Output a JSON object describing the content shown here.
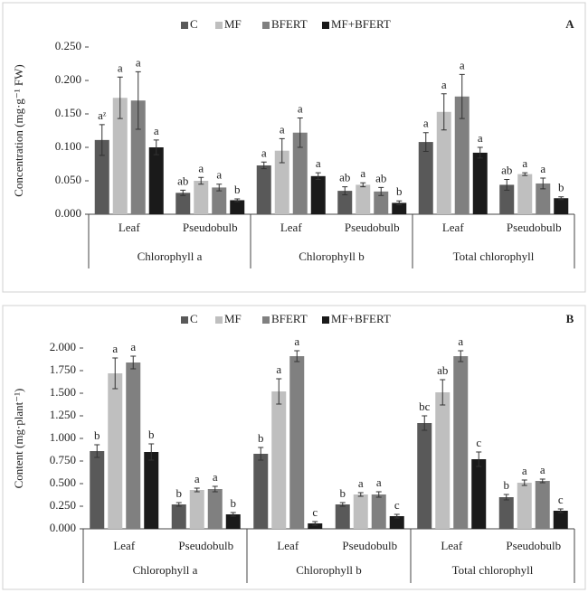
{
  "chart_data": [
    {
      "type": "bar",
      "panel_label": "A",
      "y_label": "Concentration  (mg·g⁻¹ FW)",
      "categories": [
        "Leaf",
        "Pseudobulb",
        "Leaf",
        "Pseudobulb",
        "Leaf",
        "Pseudobulb"
      ],
      "groups": [
        "Chlorophyll a",
        "Chlorophyll b",
        "Total chlorophyll"
      ],
      "ylim": [
        0,
        0.25
      ],
      "yticks": [
        {
          "value": 0,
          "label": "0.000"
        },
        {
          "value": 0.05,
          "label": "0.050"
        },
        {
          "value": 0.1,
          "label": "0.100"
        },
        {
          "value": 0.15,
          "label": "0.150"
        },
        {
          "value": 0.2,
          "label": "0.200"
        },
        {
          "value": 0.25,
          "label": "0.250"
        }
      ],
      "series": [
        {
          "name": "C",
          "color": "#595959",
          "values": [
            0.111,
            0.032,
            0.073,
            0.035,
            0.108,
            0.044
          ],
          "errors": [
            0.023,
            0.004,
            0.005,
            0.006,
            0.014,
            0.008
          ],
          "letters": [
            "aᶻ",
            "ab",
            "a",
            "ab",
            "a",
            "ab"
          ]
        },
        {
          "name": "MF",
          "color": "#bfbfbf",
          "values": [
            0.174,
            0.05,
            0.095,
            0.044,
            0.153,
            0.06
          ],
          "errors": [
            0.031,
            0.005,
            0.018,
            0.003,
            0.027,
            0.002
          ],
          "letters": [
            "a",
            "a",
            "a",
            "a",
            "a",
            "a"
          ]
        },
        {
          "name": "BFERT",
          "color": "#808080",
          "values": [
            0.17,
            0.04,
            0.122,
            0.034,
            0.176,
            0.046
          ],
          "errors": [
            0.043,
            0.005,
            0.022,
            0.006,
            0.033,
            0.008
          ],
          "letters": [
            "a",
            "a",
            "a",
            "ab",
            "a",
            "a"
          ]
        },
        {
          "name": "MF+BFERT",
          "color": "#1a1a1a",
          "values": [
            0.1,
            0.021,
            0.057,
            0.017,
            0.092,
            0.024
          ],
          "errors": [
            0.011,
            0.002,
            0.005,
            0.003,
            0.008,
            0.002
          ],
          "letters": [
            "a",
            "b",
            "a",
            "b",
            "a",
            "b"
          ]
        }
      ]
    },
    {
      "type": "bar",
      "panel_label": "B",
      "y_label": "Content  (mg·plant⁻¹)",
      "categories": [
        "Leaf",
        "Pseudobulb",
        "Leaf",
        "Pseudobulb",
        "Leaf",
        "Pseudobulb"
      ],
      "groups": [
        "Chlorophyll a",
        "Chlorophyll b",
        "Total chlorophyll"
      ],
      "ylim": [
        0,
        2
      ],
      "yticks": [
        {
          "value": 0,
          "label": "0.000"
        },
        {
          "value": 0.25,
          "label": "0.250"
        },
        {
          "value": 0.5,
          "label": "0.500"
        },
        {
          "value": 0.75,
          "label": "0.750"
        },
        {
          "value": 1,
          "label": "1.000"
        },
        {
          "value": 1.25,
          "label": "1.250"
        },
        {
          "value": 1.5,
          "label": "1.500"
        },
        {
          "value": 1.75,
          "label": "1.750"
        },
        {
          "value": 2,
          "label": "2.000"
        }
      ],
      "series": [
        {
          "name": "C",
          "color": "#595959",
          "values": [
            0.86,
            0.27,
            0.83,
            0.27,
            1.17,
            0.35
          ],
          "errors": [
            0.07,
            0.02,
            0.07,
            0.02,
            0.08,
            0.03
          ],
          "letters": [
            "b",
            "b",
            "b",
            "b",
            "bc",
            "b"
          ]
        },
        {
          "name": "MF",
          "color": "#bfbfbf",
          "values": [
            1.72,
            0.43,
            1.52,
            0.38,
            1.51,
            0.51
          ],
          "errors": [
            0.17,
            0.02,
            0.14,
            0.02,
            0.14,
            0.03
          ],
          "letters": [
            "a",
            "a",
            "a",
            "a",
            "ab",
            "a"
          ]
        },
        {
          "name": "BFERT",
          "color": "#808080",
          "values": [
            1.84,
            0.44,
            1.91,
            0.38,
            1.91,
            0.53
          ],
          "errors": [
            0.07,
            0.03,
            0.06,
            0.03,
            0.06,
            0.02
          ],
          "letters": [
            "a",
            "a",
            "a",
            "a",
            "a",
            "a"
          ]
        },
        {
          "name": "MF+BFERT",
          "color": "#1a1a1a",
          "values": [
            0.85,
            0.16,
            0.06,
            0.14,
            0.77,
            0.2
          ],
          "errors": [
            0.09,
            0.02,
            0.02,
            0.02,
            0.08,
            0.02
          ],
          "letters": [
            "b",
            "b",
            "c",
            "c",
            "c",
            "c"
          ]
        }
      ]
    }
  ]
}
